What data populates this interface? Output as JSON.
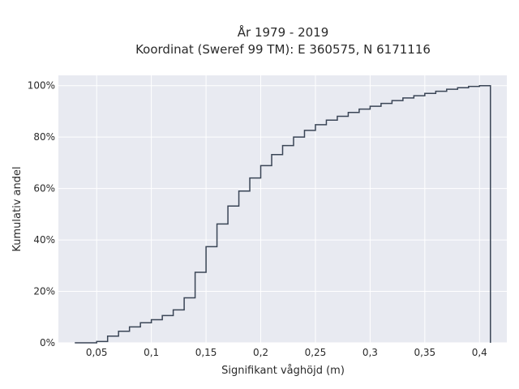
{
  "chart_data": {
    "type": "line",
    "title": "År 1979 - 2019",
    "subtitle": "Koordinat (Sweref 99 TM): E 360575, N 6171116",
    "xlabel": "Signifikant våghöjd (m)",
    "ylabel": "Kumulativ andel",
    "xlim": [
      0.015,
      0.425
    ],
    "ylim": [
      0,
      1.04
    ],
    "x_ticks": [
      0.05,
      0.1,
      0.15,
      0.2,
      0.25,
      0.3,
      0.35,
      0.4
    ],
    "x_tick_labels": [
      "0,05",
      "0,1",
      "0,15",
      "0,2",
      "0,25",
      "0,3",
      "0,35",
      "0,4"
    ],
    "y_ticks": [
      0,
      0.2,
      0.4,
      0.6,
      0.8,
      1.0
    ],
    "y_tick_labels": [
      "0%",
      "20%",
      "40%",
      "60%",
      "80%",
      "100%"
    ],
    "grid": true,
    "line_shape": "step-cumulative",
    "series": [
      {
        "color": "#3a4556",
        "x": [
          0.03,
          0.04,
          0.05,
          0.06,
          0.07,
          0.08,
          0.09,
          0.1,
          0.11,
          0.12,
          0.13,
          0.14,
          0.15,
          0.16,
          0.17,
          0.18,
          0.19,
          0.2,
          0.21,
          0.22,
          0.23,
          0.24,
          0.25,
          0.26,
          0.27,
          0.28,
          0.29,
          0.3,
          0.31,
          0.32,
          0.33,
          0.34,
          0.35,
          0.36,
          0.37,
          0.38,
          0.39,
          0.4,
          0.41
        ],
        "y": [
          0.0,
          0.0,
          0.005,
          0.026,
          0.045,
          0.062,
          0.078,
          0.09,
          0.106,
          0.128,
          0.175,
          0.274,
          0.374,
          0.462,
          0.532,
          0.59,
          0.641,
          0.689,
          0.732,
          0.767,
          0.8,
          0.826,
          0.848,
          0.866,
          0.881,
          0.896,
          0.909,
          0.92,
          0.931,
          0.942,
          0.952,
          0.961,
          0.97,
          0.978,
          0.986,
          0.992,
          0.997,
          1.0,
          0.0
        ]
      }
    ],
    "background": "#e8eaf1",
    "grid_color": "#ffffff"
  }
}
